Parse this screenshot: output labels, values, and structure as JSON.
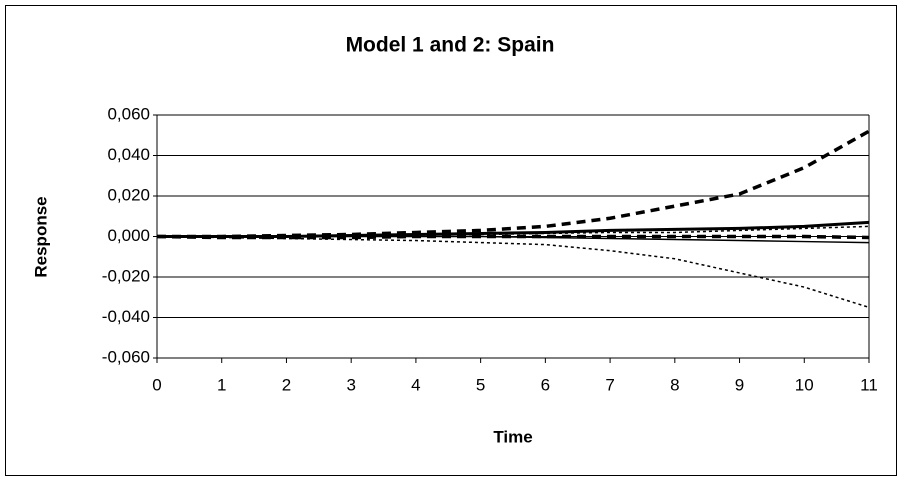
{
  "chart_data": {
    "type": "line",
    "title": "Model 1 and 2: Spain",
    "x_label": "Time",
    "y_label": "Response",
    "x": [
      0,
      1,
      2,
      3,
      4,
      5,
      6,
      7,
      8,
      9,
      10,
      11
    ],
    "xlim": [
      0,
      11
    ],
    "xticks": [
      0,
      1,
      2,
      3,
      4,
      5,
      6,
      7,
      8,
      9,
      10,
      11
    ],
    "ylim": [
      -0.06,
      0.06
    ],
    "yticks": [
      {
        "value": -0.06,
        "label": "-0,060"
      },
      {
        "value": -0.04,
        "label": "-0,040"
      },
      {
        "value": -0.02,
        "label": "-0,020"
      },
      {
        "value": 0,
        "label": "0,000"
      },
      {
        "value": 0.02,
        "label": "0,020"
      },
      {
        "value": 0.04,
        "label": "0,040"
      },
      {
        "value": 0.06,
        "label": "0,060"
      }
    ],
    "grid": true,
    "series": [
      {
        "color": "#000000",
        "width": 3.5,
        "dash": "long",
        "values": [
          0,
          0,
          0.0005,
          0.001,
          0.002,
          0.003,
          0.005,
          0.009,
          0.015,
          0.021,
          0.034,
          0.052
        ]
      },
      {
        "color": "#000000",
        "width": 1.5,
        "dash": "dot",
        "values": [
          0,
          -0.0005,
          -0.001,
          -0.0015,
          -0.002,
          -0.003,
          -0.004,
          -0.007,
          -0.011,
          -0.018,
          -0.025,
          -0.035
        ]
      },
      {
        "color": "#000000",
        "width": 3,
        "dash": "solid",
        "values": [
          0,
          0,
          0,
          0.0005,
          0.001,
          0.0015,
          0.002,
          0.003,
          0.0035,
          0.004,
          0.005,
          0.007
        ]
      },
      {
        "color": "#000000",
        "width": 1.5,
        "dash": "solid",
        "values": [
          0,
          0,
          0,
          0,
          0,
          0,
          -0.0005,
          -0.001,
          -0.0015,
          -0.002,
          -0.0025,
          -0.003
        ]
      },
      {
        "color": "#000000",
        "width": 3.5,
        "dash": "long",
        "values": [
          0,
          -0.0005,
          -0.0005,
          -0.0005,
          0,
          0,
          0,
          0,
          0,
          0,
          0,
          -0.0005
        ]
      },
      {
        "color": "#000000",
        "width": 1.5,
        "dash": "dot",
        "values": [
          0,
          0,
          0,
          0.0005,
          0.001,
          0.001,
          0.0015,
          0.002,
          0.002,
          0.003,
          0.004,
          0.005
        ]
      }
    ]
  }
}
